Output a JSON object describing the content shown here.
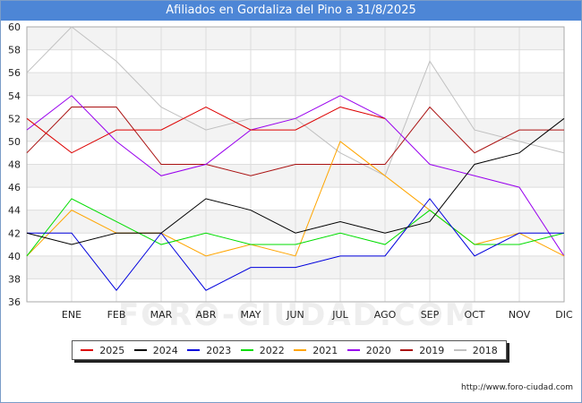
{
  "header": {
    "title": "Afiliados en Gordaliza del Pino a 31/8/2025"
  },
  "chart_data": {
    "type": "line",
    "title": "Afiliados en Gordaliza del Pino a 31/8/2025",
    "x": [
      "",
      "ENE",
      "FEB",
      "MAR",
      "ABR",
      "MAY",
      "JUN",
      "JUL",
      "AGO",
      "SEP",
      "OCT",
      "NOV",
      "DIC"
    ],
    "ylim": [
      36,
      60
    ],
    "yticks": [
      36,
      38,
      40,
      42,
      44,
      46,
      48,
      50,
      52,
      54,
      56,
      58,
      60
    ],
    "grid": true,
    "legend_position": "bottom",
    "series": [
      {
        "name": "2025",
        "color": "#dd0000",
        "values": [
          52,
          49,
          51,
          51,
          53,
          51,
          51,
          53,
          52,
          null,
          null,
          null,
          null
        ]
      },
      {
        "name": "2024",
        "color": "#000000",
        "values": [
          42,
          41,
          42,
          42,
          45,
          44,
          42,
          43,
          42,
          43,
          48,
          49,
          52
        ]
      },
      {
        "name": "2023",
        "color": "#0000dd",
        "values": [
          42,
          42,
          37,
          42,
          37,
          39,
          39,
          40,
          40,
          45,
          40,
          42,
          42
        ]
      },
      {
        "name": "2022",
        "color": "#00dd00",
        "values": [
          40,
          45,
          43,
          41,
          42,
          41,
          41,
          42,
          41,
          44,
          41,
          41,
          42
        ]
      },
      {
        "name": "2021",
        "color": "#ffa500",
        "values": [
          40,
          44,
          42,
          42,
          40,
          41,
          40,
          50,
          47,
          44,
          41,
          42,
          40
        ]
      },
      {
        "name": "2020",
        "color": "#9900ee",
        "values": [
          51,
          54,
          50,
          47,
          48,
          51,
          52,
          54,
          52,
          48,
          47,
          46,
          40
        ]
      },
      {
        "name": "2019",
        "color": "#aa1111",
        "values": [
          49,
          53,
          53,
          48,
          48,
          47,
          48,
          48,
          48,
          53,
          49,
          51,
          51
        ]
      },
      {
        "name": "2018",
        "color": "#c0c0c0",
        "values": [
          56,
          60,
          57,
          53,
          51,
          52,
          52,
          49,
          47,
          57,
          51,
          50,
          49
        ]
      }
    ]
  },
  "watermark": "FORO-CIUDAD.COM",
  "source": "http://www.foro-ciudad.com"
}
